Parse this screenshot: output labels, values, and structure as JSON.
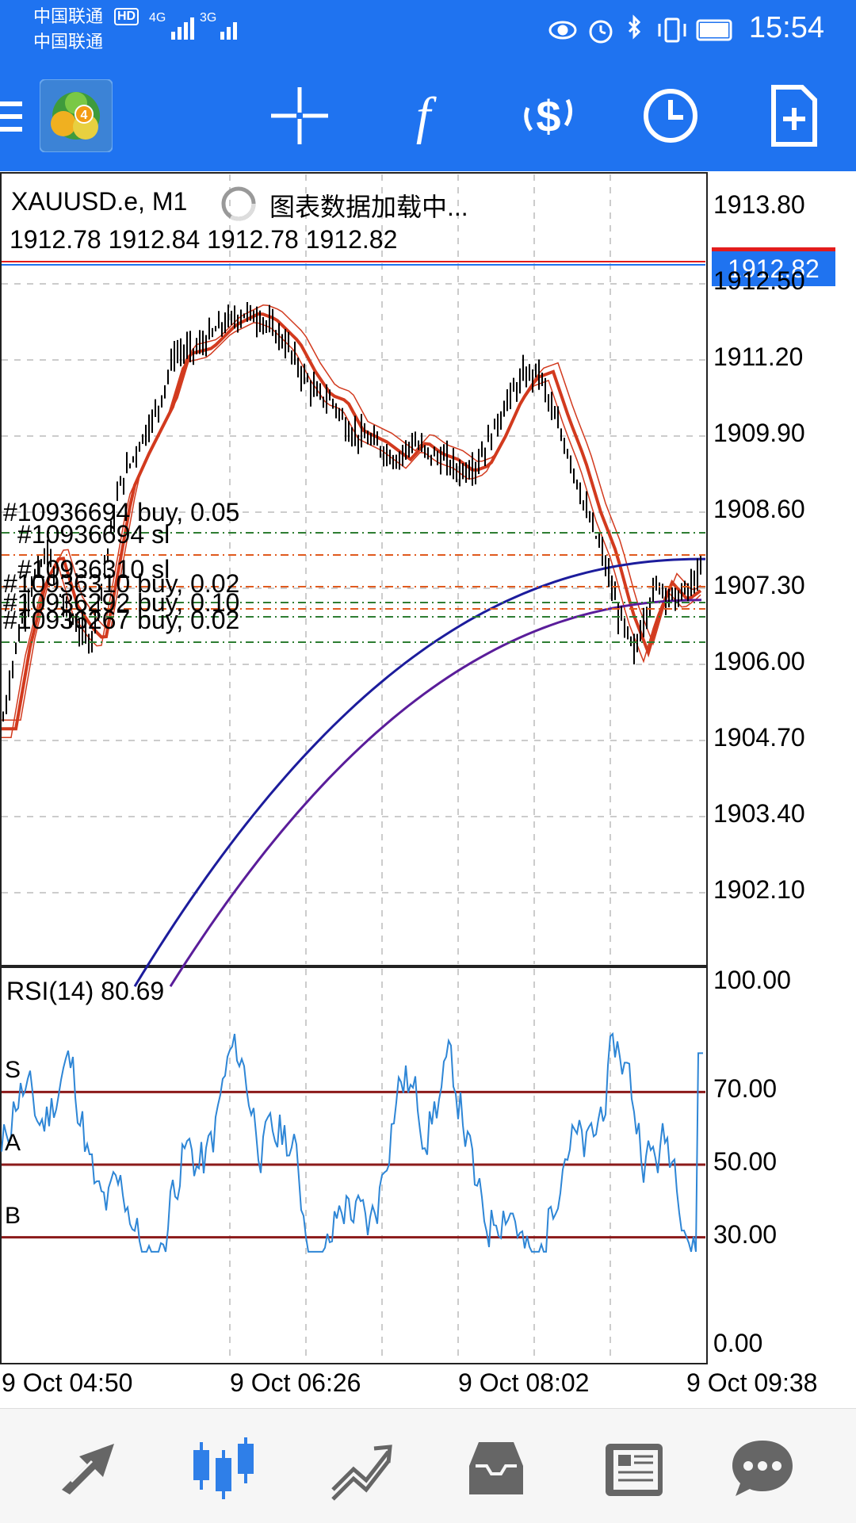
{
  "status": {
    "carrier1": "中国联通",
    "carrier2": "中国联通",
    "hd": "HD",
    "net1": "4G",
    "net2": "3G",
    "time": "15:54"
  },
  "chart": {
    "symbol": "XAUUSD.e, M1",
    "loading": "图表数据加载中...",
    "ohlc": "1912.78 1912.84 1912.78 1912.82",
    "current_price": "1912.82",
    "price_ticks": [
      "1913.80",
      "1912.50",
      "1911.20",
      "1909.90",
      "1908.60",
      "1907.30",
      "1906.00",
      "1904.70",
      "1903.40",
      "1902.10"
    ],
    "orders": [
      "#10936694 buy, 0.05",
      "#10936694 sl",
      "#10936310 sl",
      "#10936310 buy, 0.02",
      "#10936292 buy, 0.10",
      "#10936267 buy, 0.02"
    ],
    "rsi_label": "RSI(14) 80.69",
    "rsi_ticks": [
      "100.00",
      "70.00",
      "50.00",
      "30.00",
      "0.00"
    ],
    "rsi_level_labels": [
      "S",
      "A",
      "B"
    ],
    "time_labels": [
      "9 Oct 04:50",
      "9 Oct 06:26",
      "9 Oct 08:02",
      "9 Oct 09:38"
    ]
  },
  "colors": {
    "accent": "#1f73f0",
    "ma_red": "#d23a1e",
    "ma_blue": "#1c1c9c",
    "ma_purple": "#5a1d9a",
    "rsi_line": "#2e86d6",
    "rsi_level": "#8b1a1a"
  },
  "icons": {
    "toolbar": [
      "menu-icon",
      "app-logo-icon",
      "crosshair-icon",
      "indicator-f-icon",
      "trade-dollar-icon",
      "clock-icon",
      "new-order-icon"
    ],
    "nav": [
      "quotes-arrows-icon",
      "chart-candles-icon",
      "trade-icon",
      "history-inbox-icon",
      "news-icon",
      "chat-icon"
    ]
  }
}
